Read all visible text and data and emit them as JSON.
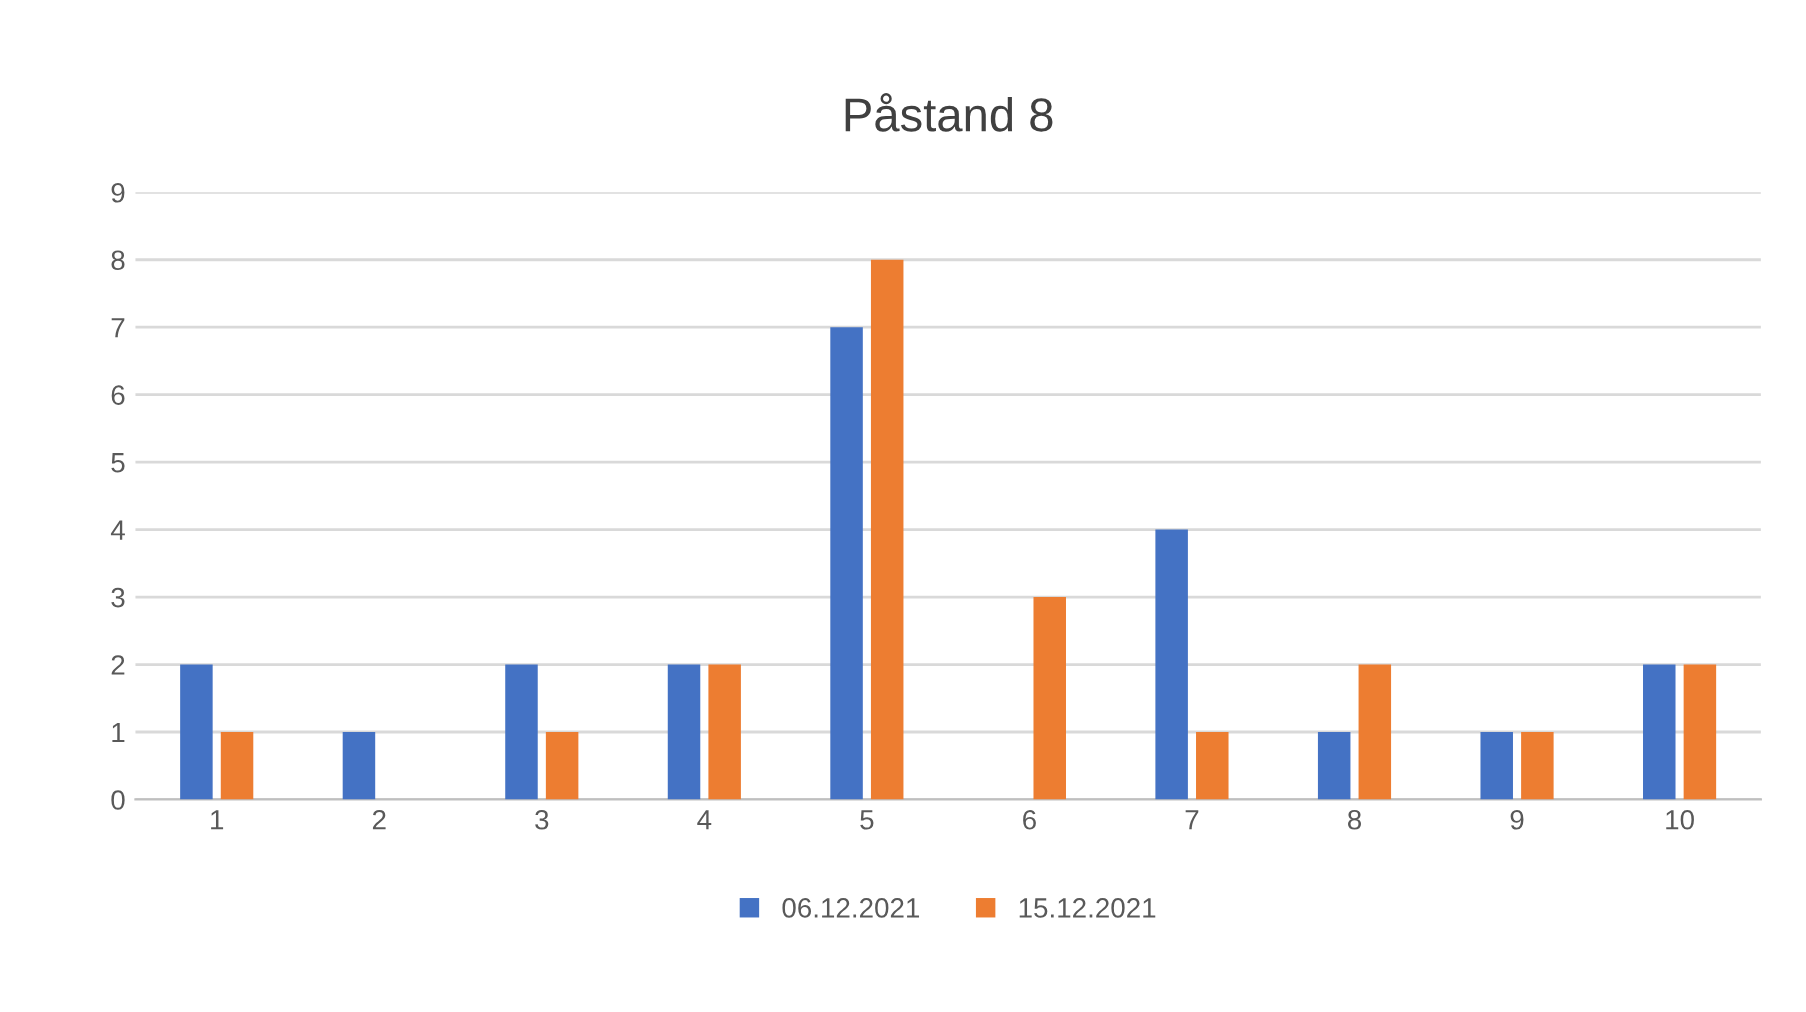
{
  "chart_data": {
    "type": "bar",
    "title": "Påstand 8",
    "categories": [
      "1",
      "2",
      "3",
      "4",
      "5",
      "6",
      "7",
      "8",
      "9",
      "10"
    ],
    "series": [
      {
        "name": "06.12.2021",
        "color": "#4472c4",
        "values": [
          2,
          1,
          2,
          2,
          7,
          0,
          4,
          1,
          1,
          2
        ]
      },
      {
        "name": "15.12.2021",
        "color": "#ed7d31",
        "values": [
          1,
          0,
          1,
          2,
          8,
          3,
          1,
          2,
          1,
          2
        ]
      }
    ],
    "ylim": [
      0,
      9
    ],
    "yticks": [
      0,
      1,
      2,
      3,
      4,
      5,
      6,
      7,
      8,
      9
    ],
    "grid": "y",
    "legend": "bottom"
  }
}
